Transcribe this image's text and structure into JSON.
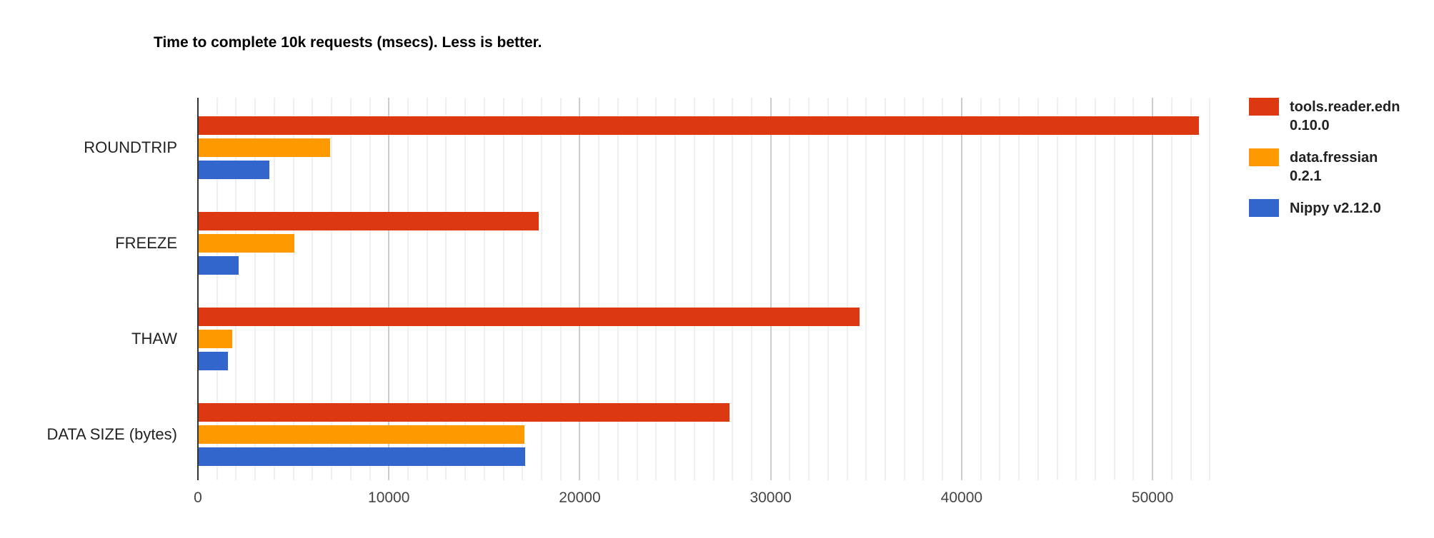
{
  "title": "Time to complete 10k requests (msecs). Less is better.",
  "colors": {
    "series_red": "#dc3912",
    "series_orange": "#ff9900",
    "series_blue": "#3366cc",
    "axis_line": "#333333",
    "major_grid": "#cccccc",
    "minor_grid": "#efefef",
    "title_text": "#000000",
    "category_label": "#222222",
    "tick_label": "#444444",
    "legend_text": "#222222",
    "background": "#ffffff"
  },
  "legend": [
    {
      "label": "tools.reader.edn 0.10.0",
      "lines": [
        "tools.reader.edn",
        "0.10.0"
      ],
      "color": "#dc3912"
    },
    {
      "label": "data.fressian 0.2.1",
      "lines": [
        "data.fressian",
        "0.2.1"
      ],
      "color": "#ff9900"
    },
    {
      "label": "Nippy v2.12.0",
      "lines": [
        "Nippy v2.12.0"
      ],
      "color": "#3366cc"
    }
  ],
  "chart_data": {
    "type": "bar",
    "orientation": "horizontal",
    "title": "Time to complete 10k requests (msecs). Less is better.",
    "categories": [
      "ROUNDTRIP",
      "FREEZE",
      "THAW",
      "DATA SIZE (bytes)"
    ],
    "series": [
      {
        "name": "tools.reader.edn 0.10.0",
        "color": "#dc3912",
        "values": [
          52400,
          17800,
          34600,
          27800
        ]
      },
      {
        "name": "data.fressian 0.2.1",
        "color": "#ff9900",
        "values": [
          6900,
          5000,
          1750,
          17050
        ]
      },
      {
        "name": "Nippy v2.12.0",
        "color": "#3366cc",
        "values": [
          3700,
          2100,
          1550,
          17100
        ]
      }
    ],
    "x_axis": {
      "min": 0,
      "max": 54000,
      "tick_interval": 10000,
      "minor_grid_interval": 1000,
      "tick_values": [
        0,
        10000,
        20000,
        30000,
        40000,
        50000
      ],
      "tick_labels": [
        "0",
        "10000",
        "20000",
        "30000",
        "40000",
        "50000"
      ]
    },
    "grid": true,
    "legend_position": "right"
  }
}
